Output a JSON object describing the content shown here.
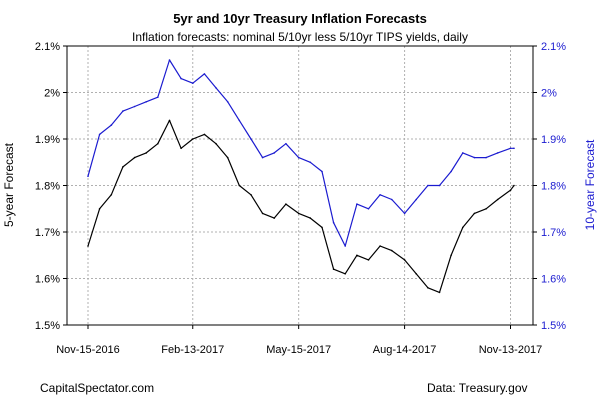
{
  "chart_data": {
    "type": "line",
    "title": "5yr and 10yr Treasury Inflation Forecasts",
    "subtitle": "Inflation forecasts: nominal 5/10yr less 5/10yr TIPS yields, daily",
    "ylabel_left": "5-year Forecast",
    "ylabel_right": "10-year Forecast",
    "source_left": "CapitalSpectator.com",
    "source_right": "Data: Treasury.gov",
    "x_ticks": [
      "Nov-15-2016",
      "Feb-13-2017",
      "May-15-2017",
      "Aug-14-2017",
      "Nov-13-2017"
    ],
    "y_ticks_left": [
      "1.5%",
      "1.6%",
      "1.7%",
      "1.8%",
      "1.9%",
      "2%",
      "2.1%"
    ],
    "y_ticks_right": [
      "1.5%",
      "1.6%",
      "1.7%",
      "1.8%",
      "1.9%",
      "2%",
      "2.1%"
    ],
    "ylim": [
      1.5,
      2.1
    ],
    "grid": true,
    "x": [
      "2016-11-15",
      "2016-11-25",
      "2016-12-05",
      "2016-12-15",
      "2016-12-25",
      "2017-01-04",
      "2017-01-14",
      "2017-01-24",
      "2017-02-03",
      "2017-02-13",
      "2017-02-23",
      "2017-03-05",
      "2017-03-15",
      "2017-03-25",
      "2017-04-04",
      "2017-04-14",
      "2017-04-24",
      "2017-05-04",
      "2017-05-15",
      "2017-05-25",
      "2017-06-04",
      "2017-06-14",
      "2017-06-24",
      "2017-07-04",
      "2017-07-14",
      "2017-07-24",
      "2017-08-03",
      "2017-08-14",
      "2017-08-24",
      "2017-09-03",
      "2017-09-13",
      "2017-09-23",
      "2017-10-03",
      "2017-10-13",
      "2017-10-23",
      "2017-11-02",
      "2017-11-13",
      "2017-11-16"
    ],
    "series": [
      {
        "name": "5-year Forecast",
        "color": "#000000",
        "values": [
          1.67,
          1.75,
          1.78,
          1.84,
          1.86,
          1.87,
          1.89,
          1.94,
          1.88,
          1.9,
          1.91,
          1.89,
          1.86,
          1.8,
          1.78,
          1.74,
          1.73,
          1.76,
          1.74,
          1.73,
          1.71,
          1.62,
          1.61,
          1.65,
          1.64,
          1.67,
          1.66,
          1.64,
          1.61,
          1.58,
          1.57,
          1.65,
          1.71,
          1.74,
          1.75,
          1.77,
          1.79,
          1.8
        ]
      },
      {
        "name": "10-year Forecast",
        "color": "#1b1bd0",
        "values": [
          1.82,
          1.91,
          1.93,
          1.96,
          1.97,
          1.98,
          1.99,
          2.07,
          2.03,
          2.02,
          2.04,
          2.01,
          1.98,
          1.94,
          1.9,
          1.86,
          1.87,
          1.89,
          1.86,
          1.85,
          1.83,
          1.72,
          1.67,
          1.76,
          1.75,
          1.78,
          1.77,
          1.74,
          1.77,
          1.8,
          1.8,
          1.83,
          1.87,
          1.86,
          1.86,
          1.87,
          1.88,
          1.88
        ]
      }
    ]
  }
}
